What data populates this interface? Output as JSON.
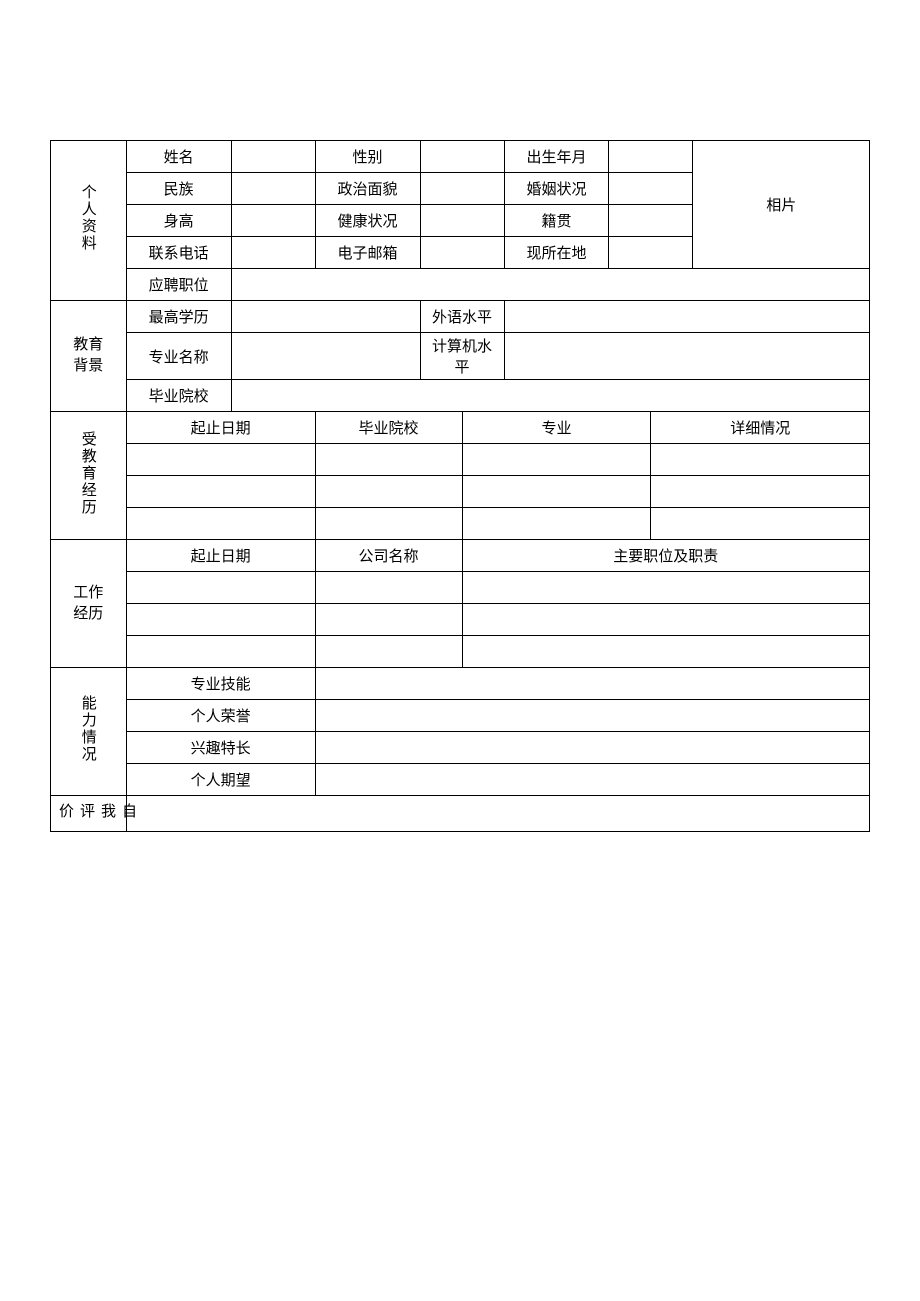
{
  "sections": {
    "personal": "个人资料",
    "edu_bg": "教育\n背景",
    "edu_exp": "受教育经历",
    "work_exp": "工作\n经历",
    "ability": "能力情况",
    "self_eval": "自我评价"
  },
  "personal": {
    "name_label": "姓名",
    "name": "",
    "gender_label": "性别",
    "gender": "",
    "birth_label": "出生年月",
    "birth": "",
    "ethnicity_label": "民族",
    "ethnicity": "",
    "politics_label": "政治面貌",
    "politics": "",
    "marital_label": "婚姻状况",
    "marital": "",
    "height_label": "身高",
    "height": "",
    "health_label": "健康状况",
    "health": "",
    "native_label": "籍贯",
    "native": "",
    "phone_label": "联系电话",
    "phone": "",
    "email_label": "电子邮箱",
    "email": "",
    "location_label": "现所在地",
    "location": "",
    "position_label": "应聘职位",
    "position": "",
    "photo_label": "相片"
  },
  "edu_bg": {
    "highest_edu_label": "最高学历",
    "highest_edu": "",
    "foreign_lang_label": "外语水平",
    "foreign_lang": "",
    "major_name_label": "专业名称",
    "major_name": "",
    "computer_label": "计算机水平",
    "computer": "",
    "grad_school_label": "毕业院校",
    "grad_school": ""
  },
  "edu_exp": {
    "header_period": "起止日期",
    "header_school": "毕业院校",
    "header_major": "专业",
    "header_detail": "详细情况",
    "rows": [
      {
        "period": "",
        "school": "",
        "major": "",
        "detail": ""
      },
      {
        "period": "",
        "school": "",
        "major": "",
        "detail": ""
      },
      {
        "period": "",
        "school": "",
        "major": "",
        "detail": ""
      }
    ]
  },
  "work_exp": {
    "header_period": "起止日期",
    "header_company": "公司名称",
    "header_role": "主要职位及职责",
    "rows": [
      {
        "period": "",
        "company": "",
        "role": ""
      },
      {
        "period": "",
        "company": "",
        "role": ""
      },
      {
        "period": "",
        "company": "",
        "role": ""
      }
    ]
  },
  "ability": {
    "skills_label": "专业技能",
    "skills": "",
    "honors_label": "个人荣誉",
    "honors": "",
    "interests_label": "兴趣特长",
    "interests": "",
    "expectation_label": "个人期望",
    "expectation": ""
  },
  "self_eval": {
    "content": ""
  },
  "style": {
    "border_color": "#000000",
    "background_color": "#ffffff",
    "text_color": "#000000",
    "font_family": "SimSun",
    "font_size_pt": 11
  }
}
